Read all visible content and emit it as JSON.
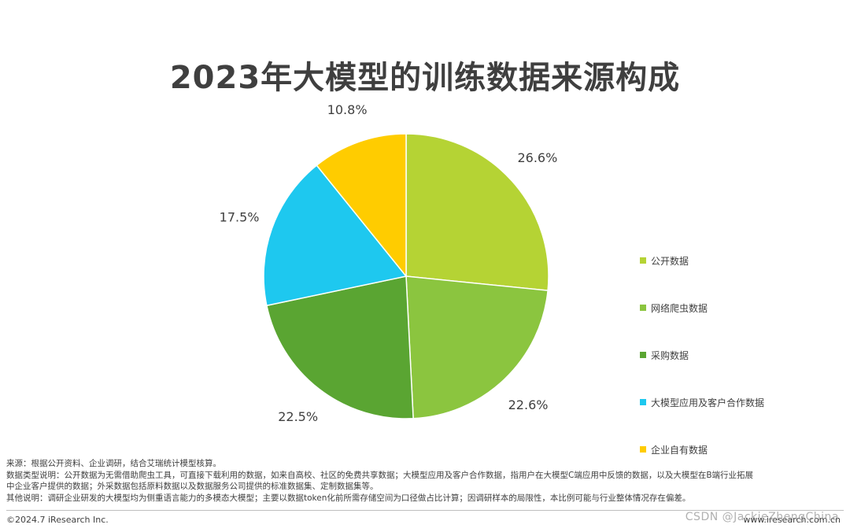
{
  "page": {
    "title": "2023年大模型的训练数据来源构成"
  },
  "chart_data": {
    "type": "pie",
    "title": "2023年大模型的训练数据来源构成",
    "slices": [
      {
        "label": "公开数据",
        "value": 26.6,
        "display": "26.6%",
        "color": "#b5d334"
      },
      {
        "label": "网络爬虫数据",
        "value": 22.6,
        "display": "22.6%",
        "color": "#8bc53f"
      },
      {
        "label": "采购数据",
        "value": 22.5,
        "display": "22.5%",
        "color": "#5aa532"
      },
      {
        "label": "大模型应用及客户合作数据",
        "value": 17.5,
        "display": "17.5%",
        "color": "#1ec8ef"
      },
      {
        "label": "企业自有数据",
        "value": 10.8,
        "display": "10.8%",
        "color": "#ffcc00"
      }
    ],
    "legend_position": "right",
    "start_angle": "12 o'clock",
    "direction": "clockwise"
  },
  "notes": {
    "source": "来源：根据公开资料、企业调研，结合艾瑞统计模型核算。",
    "explanation_line1": "数据类型说明：公开数据为无需借助爬虫工具，可直接下载利用的数据，如来自高校、社区的免费共享数据；大模型应用及客户合作数据，指用户在大模型C端应用中反馈的数据，以及大模型在B端行业拓展",
    "explanation_line2": "中企业客户提供的数据；外采数据包括原料数据以及数据服务公司提供的标准数据集、定制数据集等。",
    "other": "其他说明：调研企业研发的大模型均为侧重语言能力的多模态大模型；主要以数据token化前所需存储空间为口径做占比计算；因调研样本的局限性，本比例可能与行业整体情况存在偏差。"
  },
  "footer": {
    "copyright": "©2024.7 iResearch Inc.",
    "website": "www.iresearch.com.cn",
    "watermark": "CSDN @JackieZhengChina"
  }
}
